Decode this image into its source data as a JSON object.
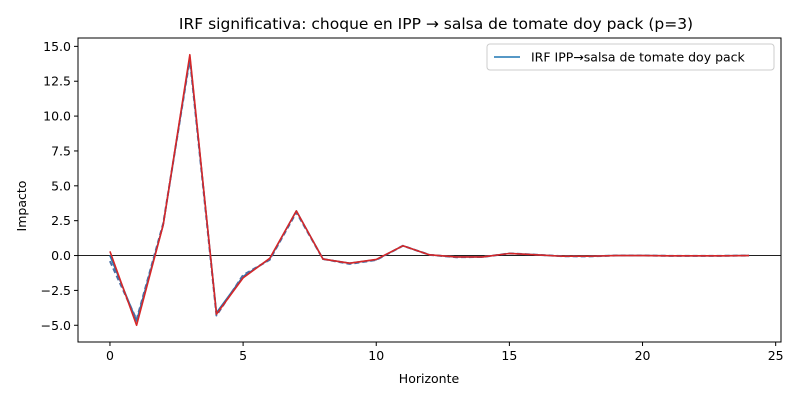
{
  "chart_data": {
    "type": "line",
    "title": "IRF significativa: choque en IPP → salsa de tomate doy pack (p=3)",
    "xlabel": "Horizonte",
    "ylabel": "Impacto",
    "xlim": [
      -1.2,
      25.2
    ],
    "ylim": [
      -6.2,
      15.6
    ],
    "xticks": [
      0,
      5,
      10,
      15,
      20,
      25
    ],
    "xtick_labels": [
      "0",
      "5",
      "10",
      "15",
      "20",
      "25"
    ],
    "yticks": [
      -5.0,
      -2.5,
      0.0,
      2.5,
      5.0,
      7.5,
      10.0,
      12.5,
      15.0
    ],
    "ytick_labels": [
      "−5.0",
      "−2.5",
      "0.0",
      "2.5",
      "5.0",
      "7.5",
      "10.0",
      "12.5",
      "15.0"
    ],
    "grid": false,
    "zero_line": true,
    "legend_position": "top-right",
    "x": [
      0,
      1,
      2,
      3,
      4,
      5,
      6,
      7,
      8,
      9,
      10,
      11,
      12,
      13,
      14,
      15,
      16,
      17,
      18,
      19,
      20,
      21,
      22,
      23,
      24
    ],
    "series": [
      {
        "name": "IRF IPP→salsa de tomate doy pack",
        "color": "#1f77b4",
        "style": "solid",
        "values": [
          0.0,
          -4.7,
          2.2,
          14.2,
          -4.1,
          -1.5,
          -0.25,
          3.2,
          -0.25,
          -0.55,
          -0.3,
          0.7,
          0.05,
          -0.1,
          -0.1,
          0.15,
          0.05,
          -0.05,
          -0.05,
          0.0,
          0.0,
          -0.02,
          -0.02,
          -0.02,
          0.0
        ]
      },
      {
        "color": "#4a6fa5",
        "style": "dashed",
        "values": [
          -0.4,
          -4.6,
          2.3,
          14.1,
          -4.3,
          -1.4,
          -0.3,
          3.1,
          -0.25,
          -0.6,
          -0.32,
          0.7,
          0.05,
          -0.12,
          -0.1,
          0.15,
          0.06,
          -0.05,
          -0.06,
          0.0,
          0.0,
          -0.02,
          -0.02,
          -0.02,
          0.0
        ]
      },
      {
        "color": "#d62728",
        "style": "solid",
        "values": [
          0.3,
          -5.0,
          2.2,
          14.4,
          -4.2,
          -1.6,
          -0.2,
          3.2,
          -0.25,
          -0.55,
          -0.28,
          0.7,
          0.05,
          -0.1,
          -0.1,
          0.15,
          0.05,
          -0.05,
          -0.05,
          0.0,
          0.0,
          -0.02,
          -0.02,
          -0.02,
          0.0
        ]
      }
    ],
    "legend": [
      {
        "label": "IRF IPP→salsa de tomate doy pack",
        "color": "#1f77b4"
      }
    ]
  }
}
